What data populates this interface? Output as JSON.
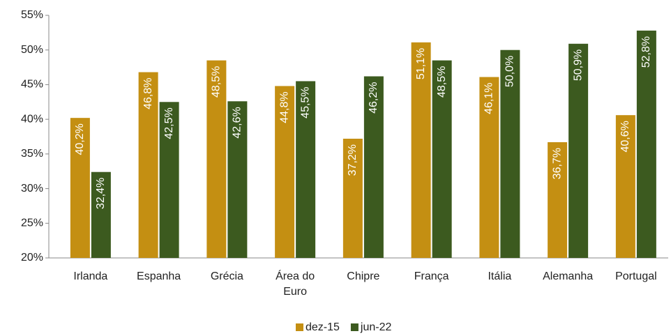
{
  "chart_data": {
    "type": "bar",
    "categories": [
      "Irlanda",
      "Espanha",
      "Grécia",
      "Área do Euro",
      "Chipre",
      "França",
      "Itália",
      "Alemanha",
      "Portugal"
    ],
    "series": [
      {
        "name": "dez-15",
        "color": "#c48f12",
        "values": [
          40.2,
          46.8,
          48.5,
          44.8,
          37.2,
          51.1,
          46.1,
          36.7,
          40.6
        ],
        "value_labels": [
          "40,2%",
          "46,8%",
          "48,5%",
          "44,8%",
          "37,2%",
          "51,1%",
          "46,1%",
          "36,7%",
          "40,6%"
        ]
      },
      {
        "name": "jun-22",
        "color": "#3c5a1f",
        "values": [
          32.4,
          42.5,
          42.6,
          45.5,
          46.2,
          48.5,
          50.0,
          50.9,
          52.8
        ],
        "value_labels": [
          "32,4%",
          "42,5%",
          "42,6%",
          "45,5%",
          "46,2%",
          "48,5%",
          "50,0%",
          "50,9%",
          "52,8%"
        ]
      }
    ],
    "ylim": [
      20,
      55
    ],
    "yticks": [
      {
        "value": 20,
        "label": "20%"
      },
      {
        "value": 25,
        "label": "25%"
      },
      {
        "value": 30,
        "label": "30%"
      },
      {
        "value": 35,
        "label": "35%"
      },
      {
        "value": 40,
        "label": "40%"
      },
      {
        "value": 45,
        "label": "45%"
      },
      {
        "value": 50,
        "label": "50%"
      },
      {
        "value": 55,
        "label": "55%"
      }
    ],
    "grid": false,
    "legend": "bottom"
  }
}
